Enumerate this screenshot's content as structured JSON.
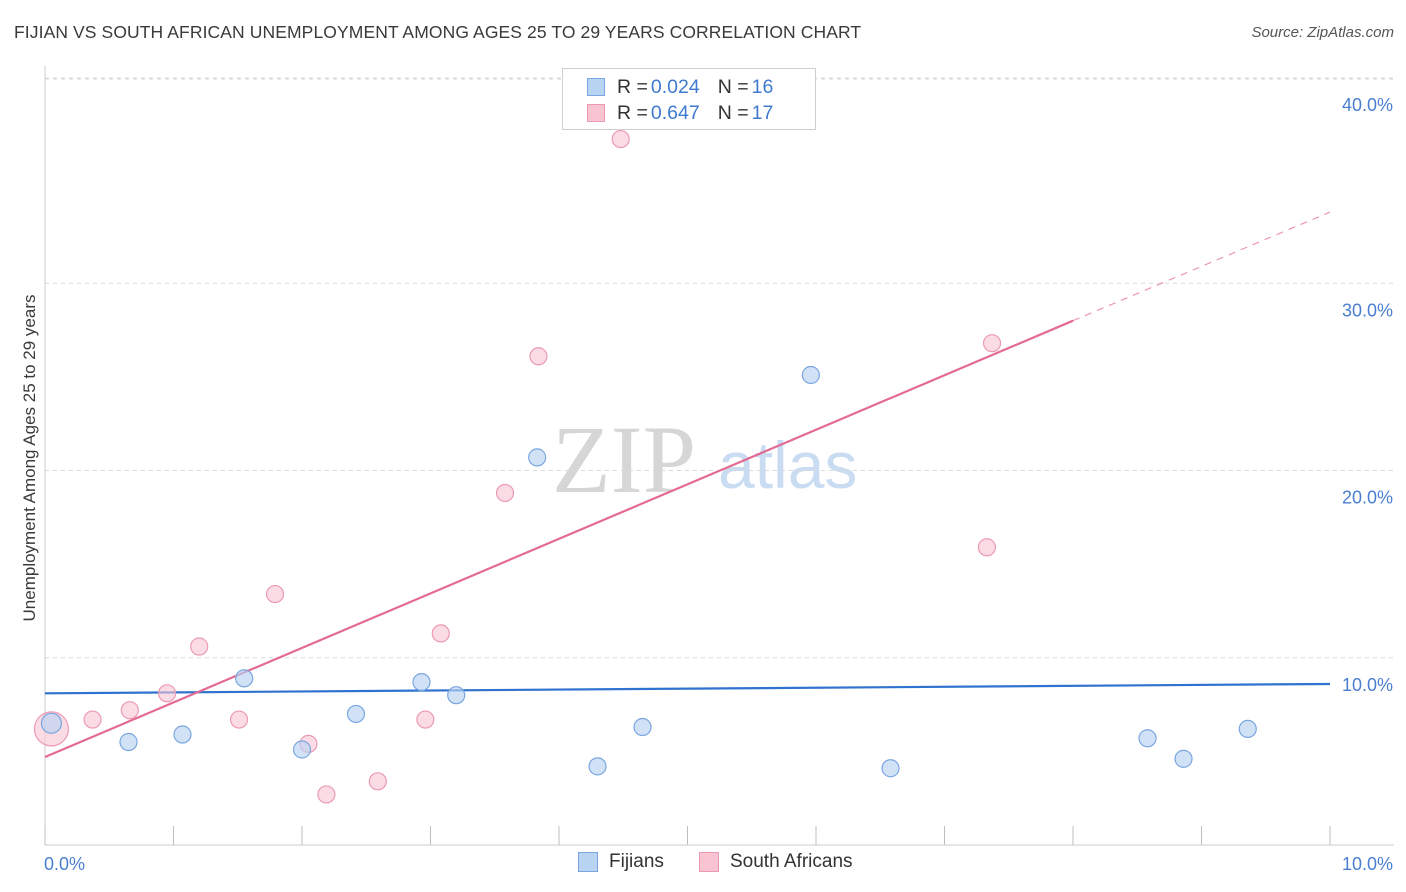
{
  "header": {
    "title": "FIJIAN VS SOUTH AFRICAN UNEMPLOYMENT AMONG AGES 25 TO 29 YEARS CORRELATION CHART",
    "source": "Source: ZipAtlas.com"
  },
  "watermark": {
    "zip": "ZIP",
    "atlas": "atlas"
  },
  "colors": {
    "fijians_fill": "#b9d3f3",
    "fijians_stroke": "#7aa6e0",
    "fijians_line": "#2f72cf",
    "sa_fill": "#f8c4d2",
    "sa_stroke": "#ec9ab3",
    "sa_line": "#e36b93",
    "grid": "#d9d9d9",
    "tick_label": "#4a7fd0"
  },
  "legend": {
    "rows": [
      {
        "r_key": "R = ",
        "r_val": "0.024",
        "n_key": "N = ",
        "n_val": "16"
      },
      {
        "r_key": "R = ",
        "r_val": "0.647",
        "n_key": "N = ",
        "n_val": "17"
      }
    ]
  },
  "chart_data": {
    "type": "scatter",
    "title": "FIJIAN VS SOUTH AFRICAN UNEMPLOYMENT AMONG AGES 25 TO 29 YEARS CORRELATION CHART",
    "xlabel": "",
    "ylabel": "Unemployment Among Ages 25 to 29 years",
    "xlim": [
      0,
      10
    ],
    "ylim": [
      0,
      42
    ],
    "x_tick_labels": [
      {
        "value": 0,
        "label": "0.0%"
      },
      {
        "value": 10,
        "label": "10.0%"
      }
    ],
    "x_minor_ticks": [
      0,
      1,
      2,
      3,
      4,
      5,
      6,
      7,
      8,
      9,
      10
    ],
    "y_ticks": [
      {
        "value": 10,
        "label": "10.0%"
      },
      {
        "value": 20,
        "label": "20.0%"
      },
      {
        "value": 30,
        "label": "30.0%"
      },
      {
        "value": 40,
        "label": "40.0%"
      }
    ],
    "legend_position": "top-center",
    "series": [
      {
        "name": "Fijians",
        "points": [
          {
            "x": 0.05,
            "y": 6.5
          },
          {
            "x": 0.65,
            "y": 5.5
          },
          {
            "x": 1.07,
            "y": 5.9
          },
          {
            "x": 1.55,
            "y": 8.9
          },
          {
            "x": 2.0,
            "y": 5.1
          },
          {
            "x": 2.42,
            "y": 7.0
          },
          {
            "x": 2.93,
            "y": 8.7
          },
          {
            "x": 3.2,
            "y": 8.0
          },
          {
            "x": 3.83,
            "y": 20.7
          },
          {
            "x": 4.3,
            "y": 4.2
          },
          {
            "x": 4.65,
            "y": 6.3
          },
          {
            "x": 5.96,
            "y": 25.1
          },
          {
            "x": 6.58,
            "y": 4.1
          },
          {
            "x": 8.58,
            "y": 5.7
          },
          {
            "x": 8.86,
            "y": 4.6
          },
          {
            "x": 9.36,
            "y": 6.2
          }
        ],
        "trend": {
          "x0": 0,
          "y0": 8.1,
          "x1": 10,
          "y1": 8.6
        }
      },
      {
        "name": "South Africans",
        "points": [
          {
            "x": 0.05,
            "y": 6.2
          },
          {
            "x": 0.37,
            "y": 6.7
          },
          {
            "x": 0.66,
            "y": 7.2
          },
          {
            "x": 0.95,
            "y": 8.1
          },
          {
            "x": 1.2,
            "y": 10.6
          },
          {
            "x": 1.51,
            "y": 6.7
          },
          {
            "x": 1.79,
            "y": 13.4
          },
          {
            "x": 2.05,
            "y": 5.4
          },
          {
            "x": 2.19,
            "y": 2.7
          },
          {
            "x": 2.59,
            "y": 3.4
          },
          {
            "x": 2.96,
            "y": 6.7
          },
          {
            "x": 3.08,
            "y": 11.3
          },
          {
            "x": 3.58,
            "y": 18.8
          },
          {
            "x": 3.84,
            "y": 26.1
          },
          {
            "x": 4.48,
            "y": 37.7
          },
          {
            "x": 7.33,
            "y": 15.9
          },
          {
            "x": 7.37,
            "y": 26.8
          }
        ],
        "trend": {
          "x0": 0,
          "y0": 4.7,
          "x1": 8.0,
          "y1": 28.0
        },
        "trend_extension": {
          "x0": 8.0,
          "y0": 28.0,
          "x1": 10,
          "y1": 33.8
        }
      }
    ]
  },
  "bottom_legend": {
    "items": [
      "Fijians",
      "South Africans"
    ]
  }
}
